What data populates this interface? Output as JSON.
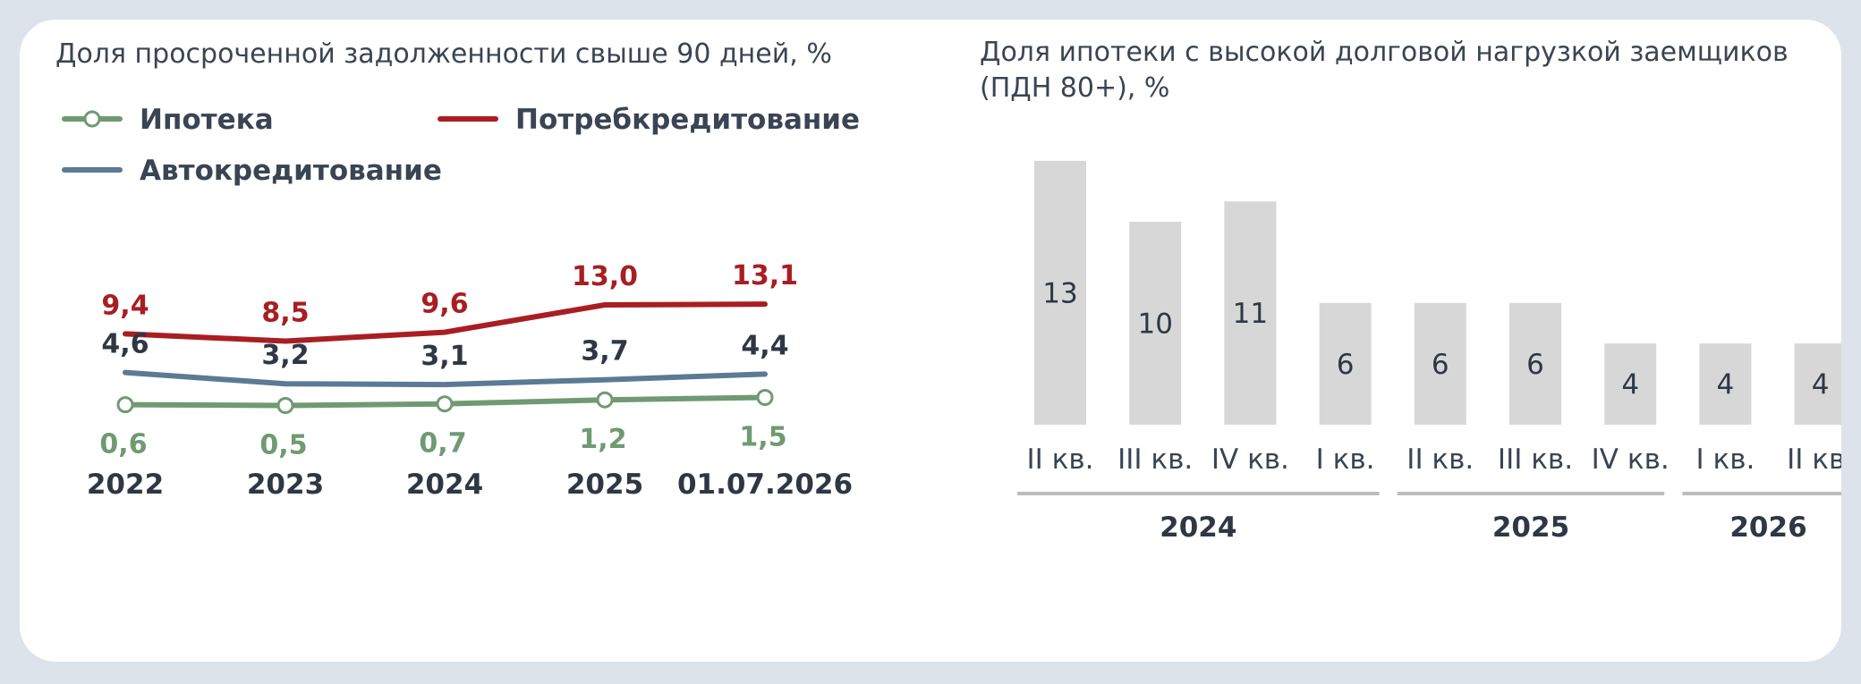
{
  "chart_data": [
    {
      "type": "line",
      "title": "Доля просроченной задолженности свыше 90 дней, %",
      "categories": [
        "2022",
        "2023",
        "2024",
        "2025",
        "01.07.2026"
      ],
      "series": [
        {
          "name": "Ипотека",
          "color": "#6f9a72",
          "values": [
            0.6,
            0.5,
            0.7,
            1.2,
            1.5
          ],
          "labels": [
            "0,6",
            "0,5",
            "0,7",
            "1,2",
            "1,5"
          ],
          "markers": true
        },
        {
          "name": "Потребкредитование",
          "color": "#a81e22",
          "values": [
            9.4,
            8.5,
            9.6,
            13.0,
            13.1
          ],
          "labels": [
            "9,4",
            "8,5",
            "9,6",
            "13,0",
            "13,1"
          ],
          "markers": false
        },
        {
          "name": "Автокредитование",
          "color": "#5b7a94",
          "values": [
            4.6,
            3.2,
            3.1,
            3.7,
            4.4
          ],
          "labels": [
            "4,6",
            "3,2",
            "3,1",
            "3,7",
            "4,4"
          ],
          "markers": false
        }
      ],
      "legend_position": "top-left",
      "grid": false
    },
    {
      "type": "bar",
      "title": "Доля ипотеки с высокой долговой нагрузкой заемщиков (ПДН 80+), %",
      "categories": [
        "II кв.",
        "III кв.",
        "IV кв.",
        "I кв.",
        "II кв.",
        "III кв.",
        "IV кв.",
        "I кв.",
        "II кв."
      ],
      "groups": [
        {
          "label": "2024",
          "from": 0,
          "to": 3
        },
        {
          "label": "2025",
          "from": 4,
          "to": 6
        },
        {
          "label": "2026",
          "from": 7,
          "to": 8
        }
      ],
      "values": [
        13,
        10,
        11,
        6,
        6,
        6,
        4,
        4,
        4
      ],
      "bar_color": "#d7d7d7",
      "group_line_color": "#bcbcbc",
      "grid": false
    }
  ]
}
